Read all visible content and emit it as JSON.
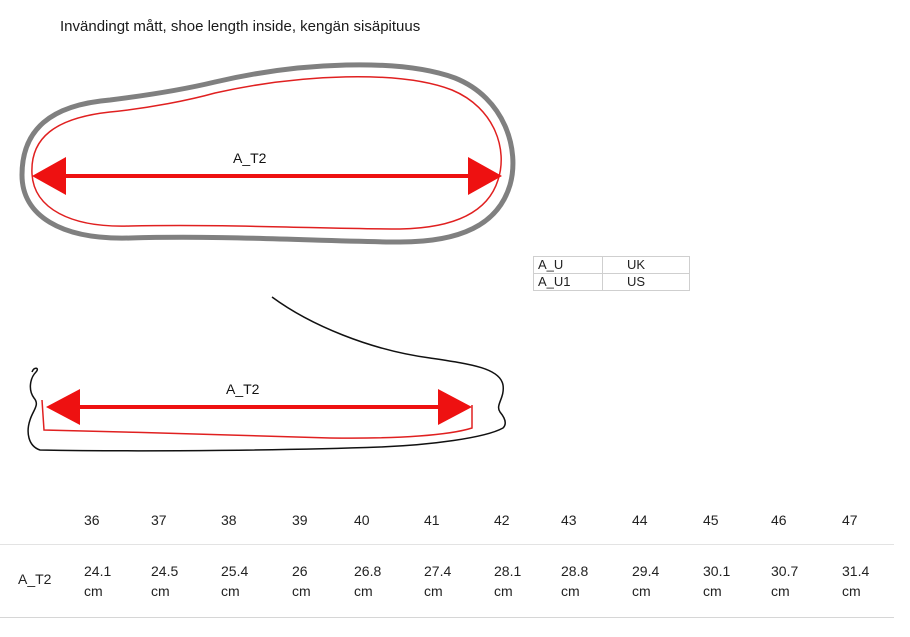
{
  "title": "Invändingt mått, shoe length inside, kengän sisäpituus",
  "diagram": {
    "top_label": "A_T2",
    "side_label": "A_T2",
    "colors": {
      "outline": "#808080",
      "insole": "#e02020",
      "arrow": "#ee1111",
      "side_outline": "#111111"
    }
  },
  "legend": [
    {
      "code": "A_U",
      "value": "UK"
    },
    {
      "code": "A_U1",
      "value": "US"
    }
  ],
  "size_table": {
    "row_label": "A_T2",
    "sizes": [
      {
        "size": "36",
        "value": "24.1",
        "unit": "cm"
      },
      {
        "size": "37",
        "value": "24.5",
        "unit": "cm"
      },
      {
        "size": "38",
        "value": "25.4",
        "unit": "cm"
      },
      {
        "size": "39",
        "value": "26",
        "unit": "cm"
      },
      {
        "size": "40",
        "value": "26.8",
        "unit": "cm"
      },
      {
        "size": "41",
        "value": "27.4",
        "unit": "cm"
      },
      {
        "size": "42",
        "value": "28.1",
        "unit": "cm"
      },
      {
        "size": "43",
        "value": "28.8",
        "unit": "cm"
      },
      {
        "size": "44",
        "value": "29.4",
        "unit": "cm"
      },
      {
        "size": "45",
        "value": "30.1",
        "unit": "cm"
      },
      {
        "size": "46",
        "value": "30.7",
        "unit": "cm"
      },
      {
        "size": "47",
        "value": "31.4",
        "unit": "cm"
      }
    ]
  }
}
